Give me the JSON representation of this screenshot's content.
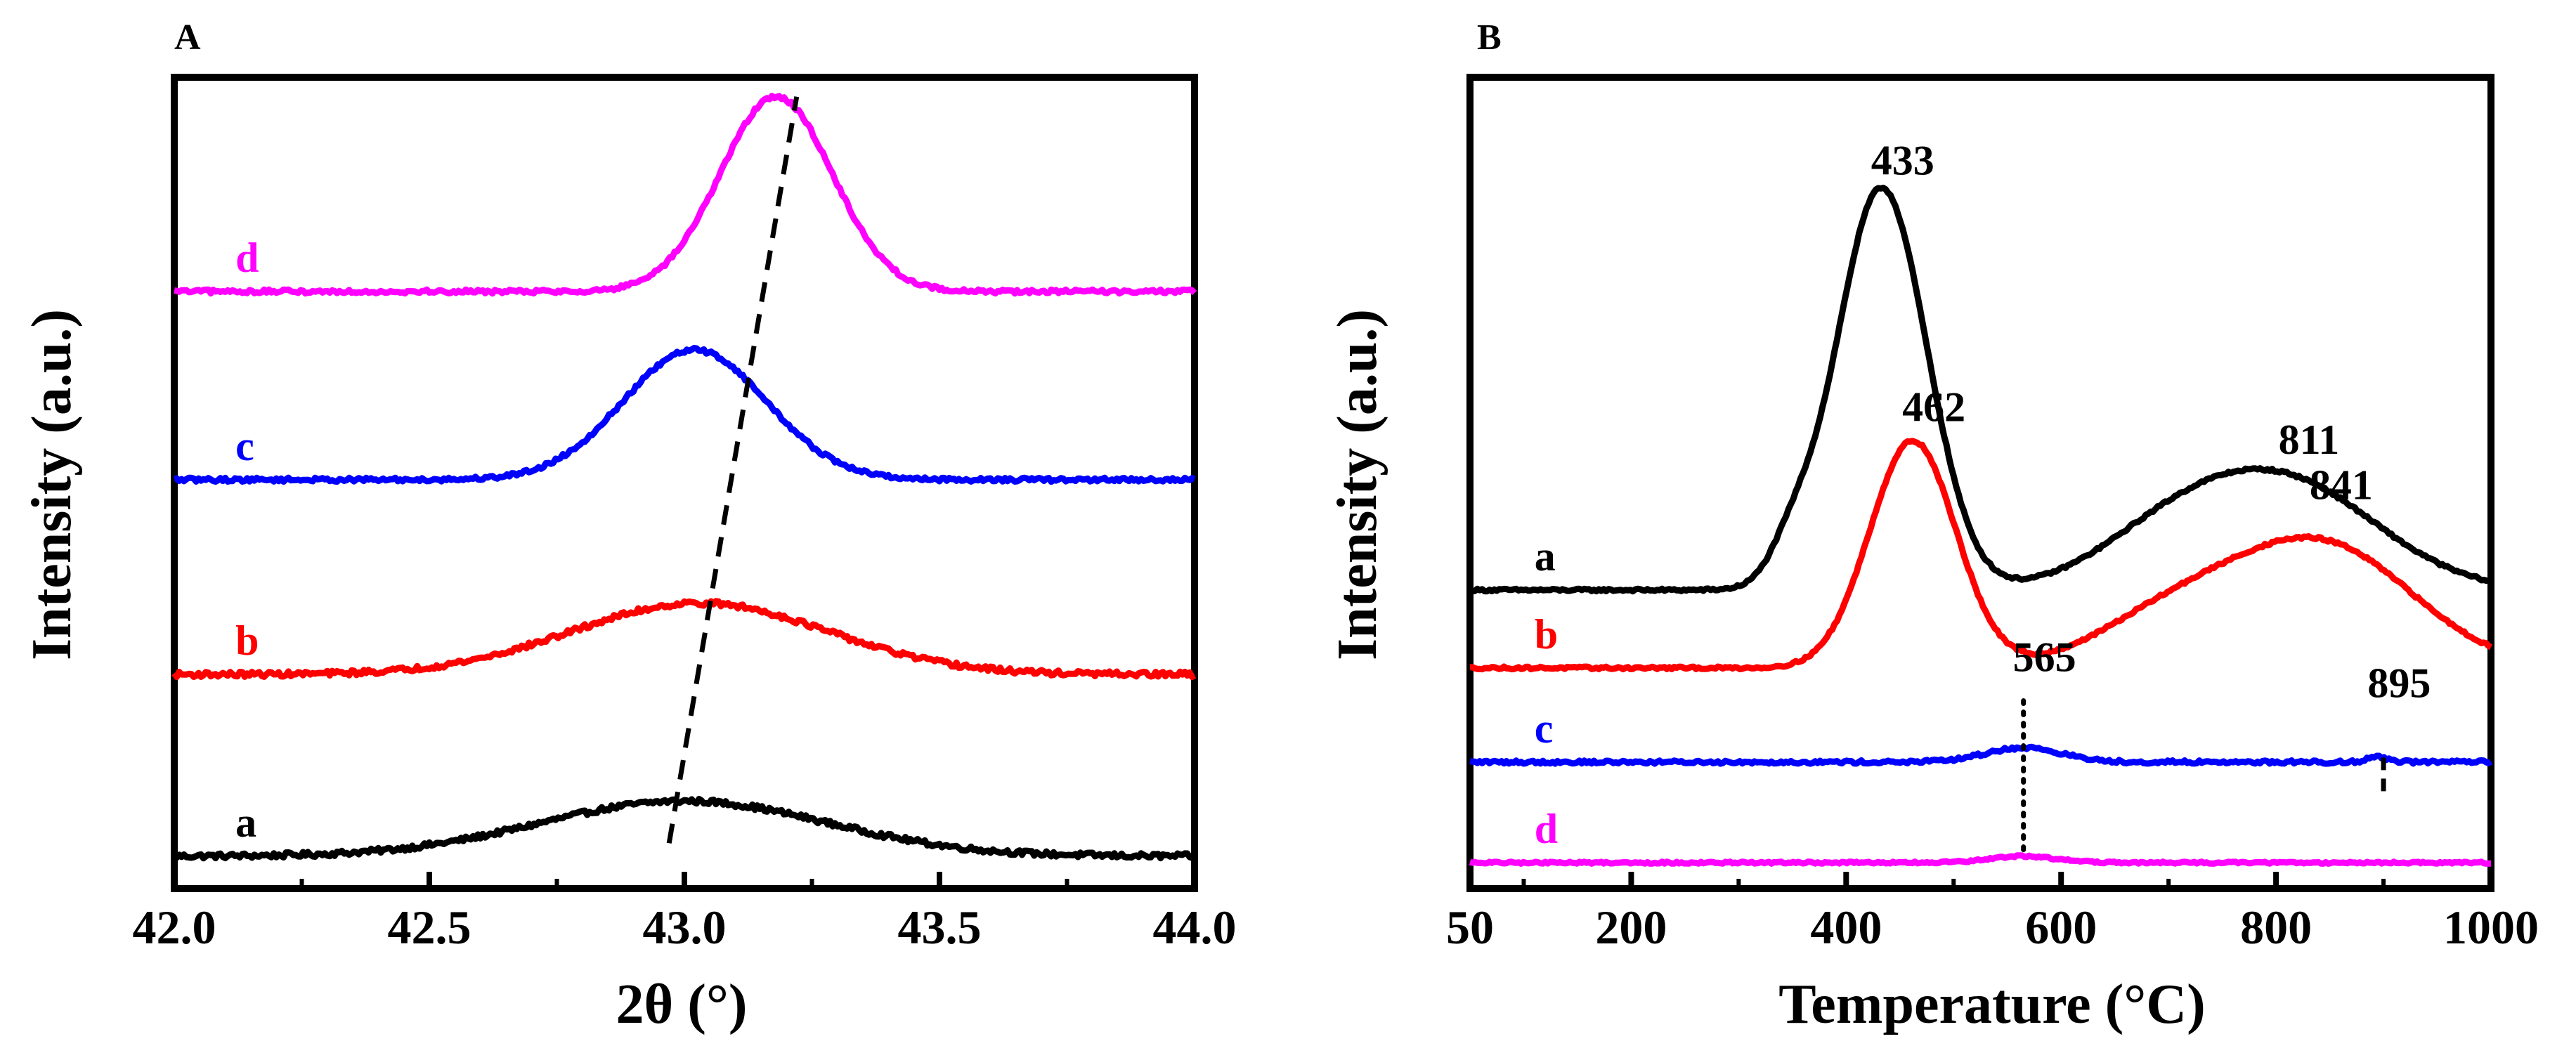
{
  "chart_data": [
    {
      "type": "line",
      "panel_label": "A",
      "xlabel": "2θ (°)",
      "ylabel": "Intensity (a.u.)",
      "xlim": [
        42.0,
        44.0
      ],
      "x_ticks": [
        "42.0",
        "42.5",
        "43.0",
        "43.5",
        "44.0"
      ],
      "y_ticks": [],
      "grid": false,
      "series": [
        {
          "name": "a",
          "color": "#000000",
          "baseline": 0.05,
          "noise": 0.004,
          "peaks": [
            {
              "center": 43.0,
              "height": 0.085,
              "width": 0.28
            }
          ]
        },
        {
          "name": "b",
          "color": "#ff0000",
          "baseline": 0.33,
          "noise": 0.004,
          "peaks": [
            {
              "center": 43.03,
              "height": 0.11,
              "width": 0.25
            }
          ]
        },
        {
          "name": "c",
          "color": "#0000ff",
          "baseline": 0.63,
          "noise": 0.003,
          "peaks": [
            {
              "center": 43.02,
              "height": 0.2,
              "width": 0.14
            }
          ]
        },
        {
          "name": "d",
          "color": "#ff00ff",
          "baseline": 0.92,
          "noise": 0.003,
          "peaks": [
            {
              "center": 43.18,
              "height": 0.3,
              "width": 0.11
            }
          ]
        }
      ],
      "annotations": [
        {
          "type": "dashed-line",
          "from": {
            "x": 42.97,
            "y": 0.07
          },
          "to": {
            "x": 43.22,
            "y": 1.22
          }
        }
      ]
    },
    {
      "type": "line",
      "panel_label": "B",
      "xlabel": "Temperature (°C)",
      "ylabel": "Intensity (a.u.)",
      "xlim": [
        50,
        1000
      ],
      "x_ticks": [
        "50",
        "200",
        "400",
        "600",
        "800",
        "1000"
      ],
      "y_ticks": [],
      "grid": false,
      "series": [
        {
          "name": "a",
          "color": "#000000",
          "baseline": 0.46,
          "noise": 0.002,
          "peaks": [
            {
              "center": 433,
              "height": 0.62,
              "width": 42
            },
            {
              "center": 350,
              "height": 0.05,
              "width": 20
            },
            {
              "center": 811,
              "height": 0.16,
              "width": 85
            },
            {
              "center": 700,
              "height": 0.07,
              "width": 70
            }
          ]
        },
        {
          "name": "b",
          "color": "#ff0000",
          "baseline": 0.34,
          "noise": 0.002,
          "peaks": [
            {
              "center": 462,
              "height": 0.35,
              "width": 40
            },
            {
              "center": 841,
              "height": 0.19,
              "width": 85
            },
            {
              "center": 700,
              "height": 0.07,
              "width": 70
            }
          ]
        },
        {
          "name": "c",
          "color": "#0000ff",
          "baseline": 0.195,
          "noise": 0.0025,
          "peaks": [
            {
              "center": 565,
              "height": 0.022,
              "width": 35
            },
            {
              "center": 895,
              "height": 0.008,
              "width": 10
            }
          ]
        },
        {
          "name": "d",
          "color": "#ff00ff",
          "baseline": 0.04,
          "noise": 0.0015,
          "peaks": [
            {
              "center": 565,
              "height": 0.01,
              "width": 30
            }
          ]
        }
      ],
      "peak_labels": [
        {
          "text": "433",
          "x": 433,
          "y": 1.1
        },
        {
          "text": "811",
          "x": 811,
          "y": 0.67
        },
        {
          "text": "462",
          "x": 462,
          "y": 0.72
        },
        {
          "text": "841",
          "x": 841,
          "y": 0.6
        },
        {
          "text": "565",
          "x": 565,
          "y": 0.335
        },
        {
          "text": "895",
          "x": 895,
          "y": 0.295
        }
      ],
      "annotations": [
        {
          "type": "dotted-line",
          "x": 565,
          "y_from": 0.06,
          "y_to": 0.3
        },
        {
          "type": "dashed-line",
          "x": 900,
          "y_from": 0.15,
          "y_to": 0.21
        }
      ]
    }
  ]
}
